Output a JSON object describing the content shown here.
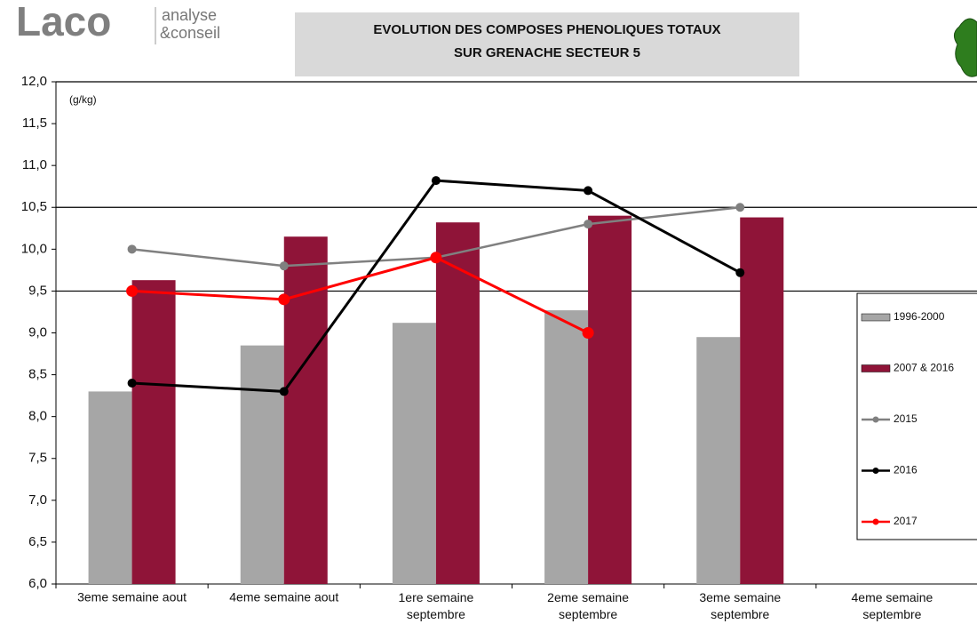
{
  "logo": {
    "brand": "Laco",
    "line1": "analyse",
    "line2": "&conseil"
  },
  "chart_data": {
    "type": "bar-line",
    "title": [
      "EVOLUTION DES COMPOSES PHENOLIQUES TOTAUX",
      "SUR GRENACHE SECTEUR 5"
    ],
    "y_label": "(g/kg)",
    "categories": [
      "3eme semaine aout",
      "4eme semaine aout",
      "1ere semaine septembre",
      "2eme semaine septembre",
      "3eme semaine septembre",
      "4eme semaine septembre"
    ],
    "series": [
      {
        "name": "1996-2000",
        "kind": "bar",
        "color": "#a6a6a6",
        "values": [
          8.3,
          8.85,
          9.12,
          9.27,
          8.95,
          null
        ]
      },
      {
        "name": "2007 & 2016",
        "kind": "bar",
        "color": "#8f1438",
        "values": [
          9.63,
          10.15,
          10.32,
          10.4,
          10.38,
          null
        ]
      },
      {
        "name": "2015",
        "kind": "line",
        "color": "#808080",
        "values": [
          10.0,
          9.8,
          9.9,
          10.3,
          10.5,
          null
        ]
      },
      {
        "name": "2016",
        "kind": "line",
        "color": "#000000",
        "values": [
          8.4,
          8.3,
          10.82,
          10.7,
          9.72,
          null
        ]
      },
      {
        "name": "2017",
        "kind": "line",
        "color": "#ff0000",
        "values": [
          9.5,
          9.4,
          9.9,
          9.0,
          null,
          null
        ]
      }
    ],
    "ylim": [
      6,
      12
    ],
    "yticks": [
      {
        "value": 6,
        "label": "6,0"
      },
      {
        "value": 6.5,
        "label": "6,5"
      },
      {
        "value": 7,
        "label": "7,0"
      },
      {
        "value": 7.5,
        "label": "7,5"
      },
      {
        "value": 8,
        "label": "8,0"
      },
      {
        "value": 8.5,
        "label": "8,5"
      },
      {
        "value": 9,
        "label": "9,0"
      },
      {
        "value": 9.5,
        "label": "9,5"
      },
      {
        "value": 10,
        "label": "10,0"
      },
      {
        "value": 10.5,
        "label": "10,5"
      },
      {
        "value": 11,
        "label": "11,0"
      },
      {
        "value": 11.5,
        "label": "11,5"
      },
      {
        "value": 12,
        "label": "12,0"
      }
    ],
    "grid_values": [
      12,
      10.5,
      9.5
    ],
    "legend": "right"
  }
}
